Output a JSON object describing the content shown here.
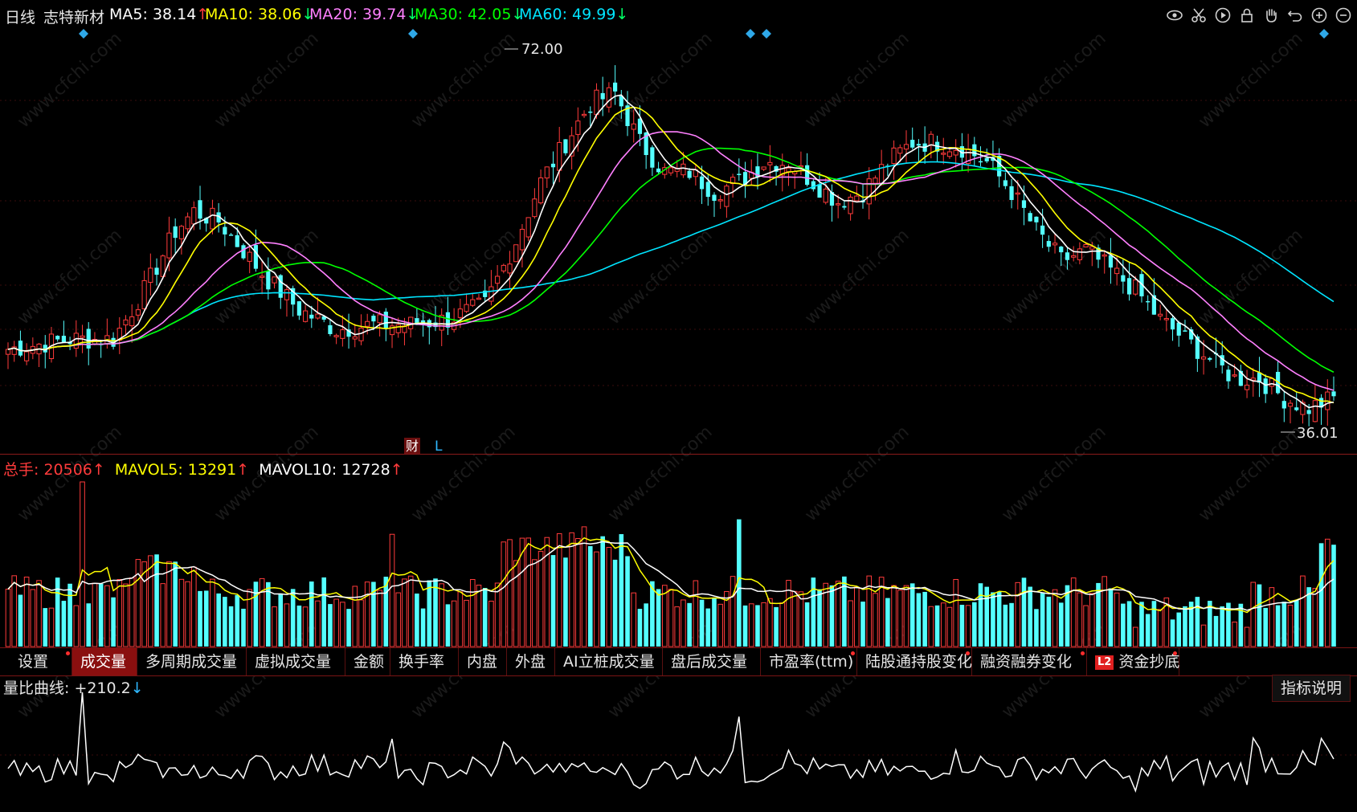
{
  "header": {
    "period": "日线",
    "stock_name": "志特新材",
    "ma5": {
      "label": "MA5:",
      "value": "38.14",
      "arrow": "↑",
      "color": "#ffffff"
    },
    "ma10": {
      "label": "MA10:",
      "value": "38.06",
      "arrow": "↓",
      "color": "#ffff00"
    },
    "ma20": {
      "label": "MA20:",
      "value": "39.74",
      "arrow": "↓",
      "color": "#ff80ff"
    },
    "ma30": {
      "label": "MA30:",
      "value": "42.05",
      "arrow": "↓",
      "color": "#00ff00"
    },
    "ma60": {
      "label": "MA60:",
      "value": "49.99",
      "arrow": "↓",
      "color": "#00e5ff"
    }
  },
  "toolbar_icons": [
    "eye-icon",
    "scissors-icon",
    "play-icon",
    "lock-icon",
    "hand-icon",
    "undo-icon",
    "zoom-in-icon",
    "zoom-out-icon"
  ],
  "price_chart": {
    "max_label": "72.00",
    "min_label": "36.01",
    "event_markers": [
      "财",
      "L"
    ]
  },
  "volume_header": {
    "total_label": "总手:",
    "total_value": "20506",
    "total_arrow": "↑",
    "mavol5_label": "MAVOL5:",
    "mavol5_value": "13291",
    "mavol5_arrow": "↑",
    "mavol10_label": "MAVOL10:",
    "mavol10_value": "12728",
    "mavol10_arrow": "↑"
  },
  "tabs": [
    {
      "label": "设置",
      "dot": true
    },
    {
      "label": "成交量",
      "active": true
    },
    {
      "label": "多周期成交量"
    },
    {
      "label": "虚拟成交量"
    },
    {
      "label": "金额"
    },
    {
      "label": "换手率"
    },
    {
      "label": "内盘"
    },
    {
      "label": "外盘"
    },
    {
      "label": "AI立桩成交量"
    },
    {
      "label": "盘后成交量"
    },
    {
      "label": "市盈率(ttm)",
      "dot": true
    },
    {
      "label": "陆股通持股变化",
      "dot": true
    },
    {
      "label": "融资融券变化",
      "dot": true
    },
    {
      "label": "资金抄底",
      "badge": "L2",
      "dot": true
    }
  ],
  "ratio_panel": {
    "label": "量比曲线:",
    "value": "+210.2",
    "arrow": "↓",
    "explain_button": "指标说明"
  },
  "watermark": "www.cfchi.com",
  "chart_data": [
    {
      "type": "candlestick",
      "y_range": [
        34,
        74
      ],
      "ma_colors": {
        "ma5": "#ffffff",
        "ma10": "#ffff00",
        "ma20": "#ff80ff",
        "ma30": "#00ff00",
        "ma60": "#00e5ff"
      },
      "ma_values_last": {
        "ma5": 38.14,
        "ma10": 38.06,
        "ma20": 39.74,
        "ma30": 42.05,
        "ma60": 49.99
      },
      "high": 72.0,
      "low": 36.01,
      "candles_count": 190
    },
    {
      "type": "bar",
      "series_names": [
        "MAVOL5",
        "MAVOL10"
      ],
      "last_values": {
        "volume": 20506,
        "mavol5": 13291,
        "mavol10": 12728
      }
    },
    {
      "type": "line",
      "last_value": 210.2
    }
  ]
}
